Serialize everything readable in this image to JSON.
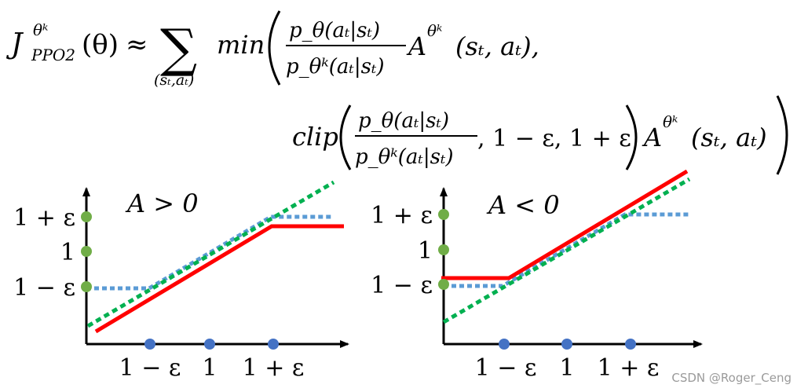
{
  "formula": {
    "lhs_J": "J",
    "lhs_sup": "θᵏ",
    "lhs_sub": "PPO2",
    "lhs_arg": "(θ)",
    "approx": "≈",
    "sum_symbol": "∑",
    "sum_index": "(sₜ,aₜ)",
    "min_label": "min",
    "frac_numerator": "p_θ(aₜ|sₜ)",
    "frac_denominator": "p_θᵏ(aₜ|sₜ)",
    "advantage_A": "A",
    "advantage_sup": "θᵏ",
    "advantage_arg_line1": "(sₜ, aₜ),",
    "clip_label": "clip",
    "clip_bounds": ", 1 − ε, 1 + ε",
    "advantage_arg_line2": "(sₜ, aₜ)"
  },
  "left_plot": {
    "condition": "A > 0",
    "y_ticks": [
      "1 + ε",
      "1",
      "1 − ε"
    ],
    "x_ticks": [
      "1 − ε",
      "1",
      "1 + ε"
    ]
  },
  "right_plot": {
    "condition": "A < 0",
    "y_ticks": [
      "1 + ε",
      "1",
      "1 − ε"
    ],
    "x_ticks": [
      "1 − ε",
      "1",
      "1 + ε"
    ]
  },
  "colors": {
    "red_line": "#ff0000",
    "blue_dotted": "#5b9bd5",
    "green_dotted": "#00b050",
    "green_dot": "#70ad47",
    "blue_dot": "#4472c4"
  },
  "watermark": "CSDN @Roger_Ceng"
}
